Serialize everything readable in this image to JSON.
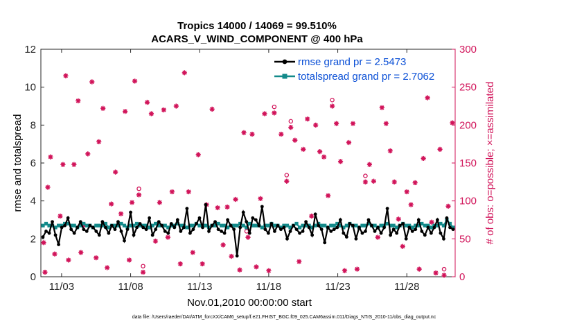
{
  "colors": {
    "rmse": "#000000",
    "spread": "#138a8a",
    "obs": "#d1145a",
    "legend_text": "#0a4fd6"
  },
  "footer": "data file: /Users/raeder/DAI/ATM_forcXX/CAM6_setup/f.e21.FHIST_BGC.f09_025.CAM6assim.011/Diags_NTrS_2010-11/obs_diag_output.nc",
  "chart_data": {
    "type": "line",
    "title": "Tropics 14000 / 14069 = 99.510%",
    "subtitle": "ACARS_V_WIND_COMPONENT @ 400 hPa",
    "xlabel": "Nov.01,2010 00:00:00 start",
    "ylabel": "rmse and totalspread",
    "ylabel_right": "# of obs: o=possible; ×=assimilated",
    "xlim": [
      0.5,
      30.5
    ],
    "ylim": [
      0,
      12
    ],
    "ylim_right": [
      0,
      300
    ],
    "x_ticks": [
      2,
      7,
      12,
      17,
      22,
      27
    ],
    "x_tick_labels": [
      "11/03",
      "11/08",
      "11/13",
      "11/18",
      "11/23",
      "11/28"
    ],
    "y_ticks": [
      0,
      2,
      4,
      6,
      8,
      10,
      12
    ],
    "y_ticks_right": [
      0,
      50,
      100,
      150,
      200,
      250,
      300
    ],
    "legend_position": "top-right",
    "series": [
      {
        "name": "rmse grand pr = 2.5473",
        "axis": "left",
        "values": [
          2.1,
          2.4,
          2.3,
          2.9,
          2.2,
          1.7,
          2.6,
          2.7,
          3.1,
          2.5,
          2.3,
          2.6,
          2.9,
          2.5,
          2.4,
          2.7,
          2.6,
          2.4,
          2.2,
          2.9,
          2.6,
          2.3,
          2.7,
          2.5,
          2.9,
          2.4,
          1.9,
          2.5,
          3.4,
          2.2,
          2.6,
          2.8,
          2.6,
          2.5,
          3.1,
          2.2,
          2.5,
          2.9,
          2.7,
          2.4,
          2.3,
          2.8,
          2.6,
          3.0,
          2.4,
          2.6,
          3.6,
          2.3,
          2.5,
          2.8,
          3.1,
          2.6,
          3.8,
          2.4,
          2.7,
          2.9,
          2.5,
          2.4,
          2.3,
          3.0,
          2.7,
          2.5,
          1.1,
          2.6,
          3.4,
          2.9,
          2.3,
          3.1,
          3.0,
          2.7,
          3.7,
          2.5,
          2.3,
          2.8,
          2.4,
          2.7,
          2.5,
          2.6,
          2.0,
          2.4,
          2.7,
          2.5,
          2.3,
          2.4,
          2.9,
          2.6,
          2.2,
          3.3,
          2.7,
          2.5,
          1.8,
          2.6,
          2.4,
          2.5,
          2.6,
          3.0,
          2.3,
          2.1,
          2.8,
          2.7,
          2.0,
          2.6,
          2.3,
          2.4,
          3.0,
          2.7,
          2.4,
          2.6,
          2.3,
          2.6,
          3.6,
          2.2,
          2.5,
          2.3,
          2.7,
          2.8,
          2.0,
          2.6,
          2.4,
          2.5,
          3.0,
          2.4,
          2.2,
          2.6,
          2.3,
          2.6,
          3.0,
          2.3,
          2.0,
          3.1,
          2.6,
          2.5
        ]
      },
      {
        "name": "totalspread grand pr = 2.7062",
        "axis": "left",
        "values": [
          2.7,
          2.8,
          2.7,
          2.7,
          2.6,
          2.7,
          2.7,
          2.8,
          2.8,
          2.7,
          2.7,
          2.6,
          2.7,
          2.8,
          2.7,
          2.7,
          2.6,
          2.7,
          2.7,
          2.7,
          2.8,
          2.6,
          2.7,
          2.7,
          2.7,
          2.8,
          2.7,
          2.6,
          2.7,
          2.7,
          2.8,
          2.7,
          2.7,
          2.7,
          2.6,
          2.7,
          2.8,
          2.7,
          2.7,
          2.7,
          2.6,
          2.7,
          2.7,
          2.8,
          2.7,
          2.7,
          2.6,
          2.7,
          2.7,
          2.8,
          2.7,
          2.7,
          2.7,
          2.6,
          2.7,
          2.7,
          2.8,
          2.7,
          2.7,
          2.6,
          2.7,
          2.7,
          2.7,
          2.8,
          2.7,
          2.6,
          2.8,
          2.7,
          2.7,
          2.7,
          2.6,
          2.7,
          2.7,
          2.8,
          2.7,
          2.7,
          2.6,
          2.7,
          2.7,
          2.6,
          2.7,
          2.8,
          2.6,
          2.7,
          2.7,
          2.7,
          2.6,
          2.7,
          2.8,
          2.7,
          2.7,
          2.6,
          2.7,
          2.7,
          2.8,
          2.7,
          2.6,
          2.7,
          2.8,
          2.7,
          2.7,
          2.6,
          2.7,
          2.7,
          2.8,
          2.7,
          2.7,
          2.6,
          2.7,
          2.7,
          2.8,
          2.7,
          2.7,
          2.6,
          2.7,
          2.8,
          2.7,
          2.7,
          2.6,
          2.7,
          2.7,
          2.8,
          2.7,
          2.7,
          2.6,
          2.7,
          2.7,
          2.8,
          2.7,
          3.0,
          2.8,
          2.6
        ]
      }
    ],
    "obs_counts": {
      "axis": "right",
      "x": [
        0.7,
        0.8,
        1.0,
        1.2,
        1.5,
        1.9,
        2.1,
        2.3,
        2.5,
        2.9,
        3.2,
        3.4,
        3.6,
        3.9,
        4.2,
        4.5,
        4.7,
        5.0,
        5.3,
        5.6,
        5.9,
        6.3,
        6.6,
        6.9,
        7.1,
        7.3,
        7.6,
        7.9,
        8.2,
        8.5,
        8.8,
        9.1,
        9.4,
        9.7,
        10.0,
        10.3,
        10.6,
        10.9,
        11.2,
        11.5,
        11.9,
        12.2,
        12.5,
        12.9,
        13.3,
        13.7,
        14.0,
        14.3,
        14.6,
        14.9,
        15.2,
        15.5,
        15.8,
        16.1,
        16.4,
        16.7,
        17.0,
        17.4,
        17.9,
        18.3,
        18.6,
        18.9,
        19.2,
        19.5,
        19.8,
        20.1,
        20.4,
        20.7,
        21.0,
        21.3,
        21.6,
        21.9,
        22.2,
        22.5,
        22.8,
        23.1,
        23.4,
        23.7,
        24.0,
        24.3,
        24.6,
        24.9,
        25.2,
        25.5,
        25.8,
        26.1,
        26.4,
        26.7,
        27.0,
        27.3,
        27.6,
        27.9,
        28.2,
        28.5,
        28.8,
        29.1,
        29.4,
        29.7,
        30.0,
        30.3
      ],
      "y": [
        45,
        6,
        118,
        158,
        30,
        80,
        148,
        265,
        22,
        148,
        232,
        32,
        68,
        162,
        257,
        25,
        178,
        222,
        12,
        96,
        138,
        83,
        218,
        22,
        98,
        258,
        108,
        6,
        230,
        215,
        47,
        98,
        220,
        52,
        112,
        225,
        17,
        269,
        112,
        32,
        161,
        17,
        95,
        221,
        91,
        42,
        92,
        27,
        102,
        9,
        190,
        52,
        188,
        13,
        103,
        215,
        8,
        216,
        188,
        126,
        197,
        180,
        20,
        168,
        208,
        80,
        200,
        165,
        158,
        107,
        225,
        202,
        152,
        8,
        177,
        202,
        10,
        257,
        125,
        148,
        126,
        52,
        223,
        202,
        166,
        125,
        76,
        40,
        112,
        95,
        124,
        10,
        156,
        236,
        72,
        5,
        168,
        2,
        93,
        203
      ],
      "possible_markers_x": [
        7.6,
        7.9,
        15.4,
        17.4,
        18.3,
        18.6,
        21.6,
        24.0,
        29.7
      ]
    }
  }
}
